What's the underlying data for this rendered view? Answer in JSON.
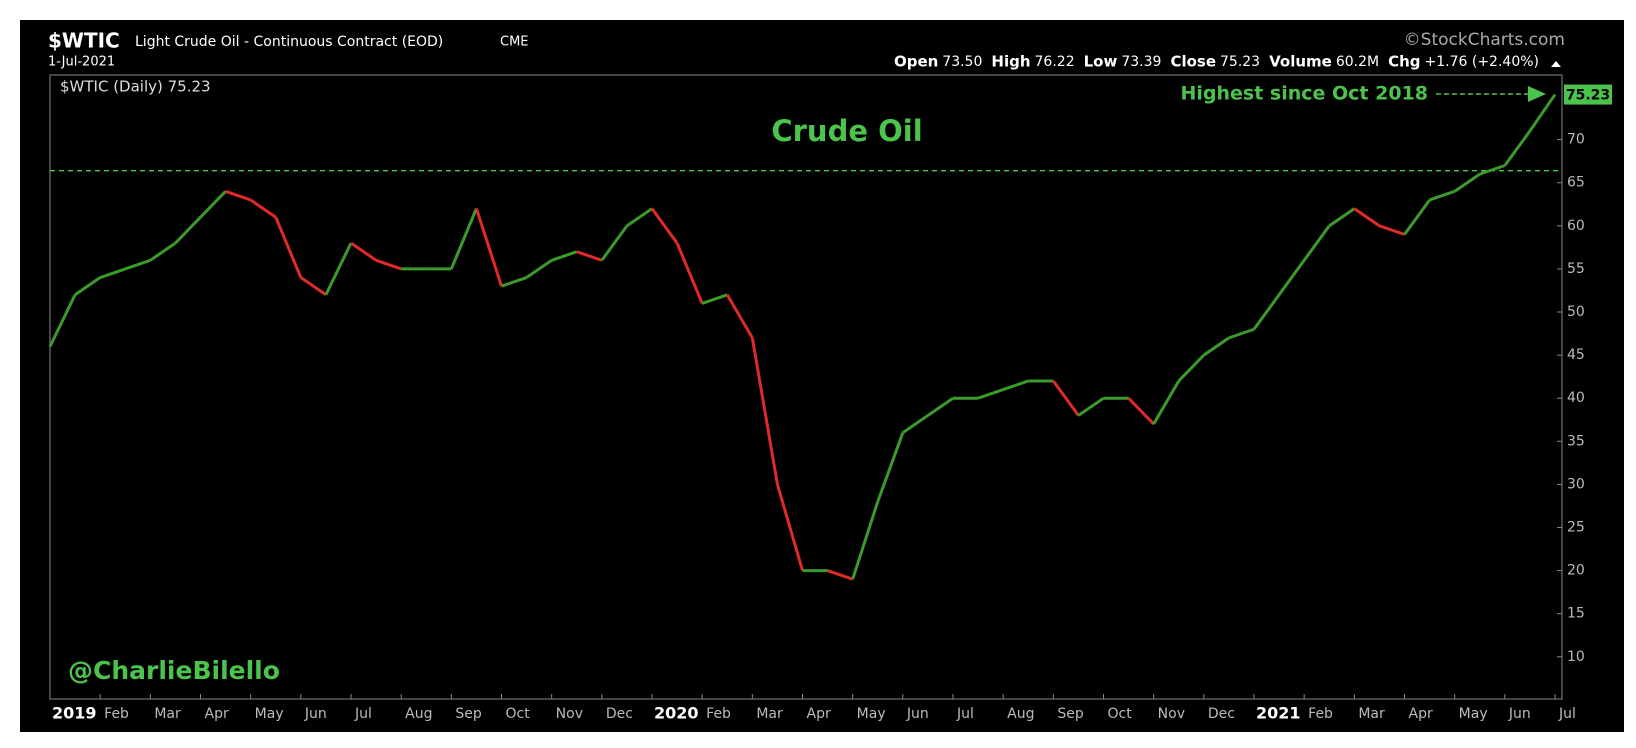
{
  "chart_data": {
    "type": "line",
    "symbol": "$WTIC",
    "name": "Light Crude Oil - Continuous Contract (EOD)",
    "exchange": "CME",
    "date": "1-Jul-2021",
    "source": "©StockCharts.com",
    "info": [
      {
        "label": "Open",
        "value": "73.50"
      },
      {
        "label": "High",
        "value": "76.22"
      },
      {
        "label": "Low",
        "value": "73.39"
      },
      {
        "label": "Close",
        "value": "75.23"
      },
      {
        "label": "Volume",
        "value": "60.2M"
      },
      {
        "label": "Chg",
        "value": "+1.76 (+2.40%)"
      }
    ],
    "legend": "$WTIC (Daily) 75.23",
    "title": "Crude Oil",
    "annotation": "Highest since Oct 2018",
    "watermark": "@CharlieBilello",
    "reference_line": 66.4,
    "categories": [
      "2019",
      null,
      "Feb",
      null,
      "Mar",
      null,
      "Apr",
      null,
      "May",
      null,
      "Jun",
      null,
      "Jul",
      null,
      "Aug",
      null,
      "Sep",
      null,
      "Oct",
      null,
      "Nov",
      null,
      "Dec",
      null,
      "2020",
      null,
      "Feb",
      null,
      "Mar",
      null,
      "Apr",
      null,
      "May",
      null,
      "Jun",
      null,
      "Jul",
      null,
      "Aug",
      null,
      "Sep",
      null,
      "Oct",
      null,
      "Nov",
      null,
      "Dec",
      null,
      "2021",
      null,
      "Feb",
      null,
      "Mar",
      null,
      "Apr",
      null,
      "May",
      null,
      "Jun",
      null,
      "Jul"
    ],
    "values": [
      46,
      52,
      54,
      55,
      56,
      58,
      61,
      64,
      63,
      61,
      54,
      52,
      58,
      56,
      55,
      55,
      55,
      62,
      53,
      54,
      56,
      57,
      56,
      60,
      62,
      58,
      51,
      52,
      47,
      30,
      20,
      20,
      19,
      28,
      36,
      38,
      40,
      40,
      41,
      42,
      42,
      38,
      40,
      40,
      37,
      42,
      45,
      47,
      48,
      52,
      56,
      60,
      62,
      60,
      59,
      63,
      64,
      66,
      67,
      71,
      75.23
    ],
    "up_color": "#3c9a2c",
    "down_color": "#e02a2a",
    "ylim": [
      5.1,
      77.5
    ],
    "yticks": [
      10,
      15,
      20,
      25,
      30,
      35,
      40,
      45,
      50,
      55,
      60,
      65,
      70
    ]
  }
}
